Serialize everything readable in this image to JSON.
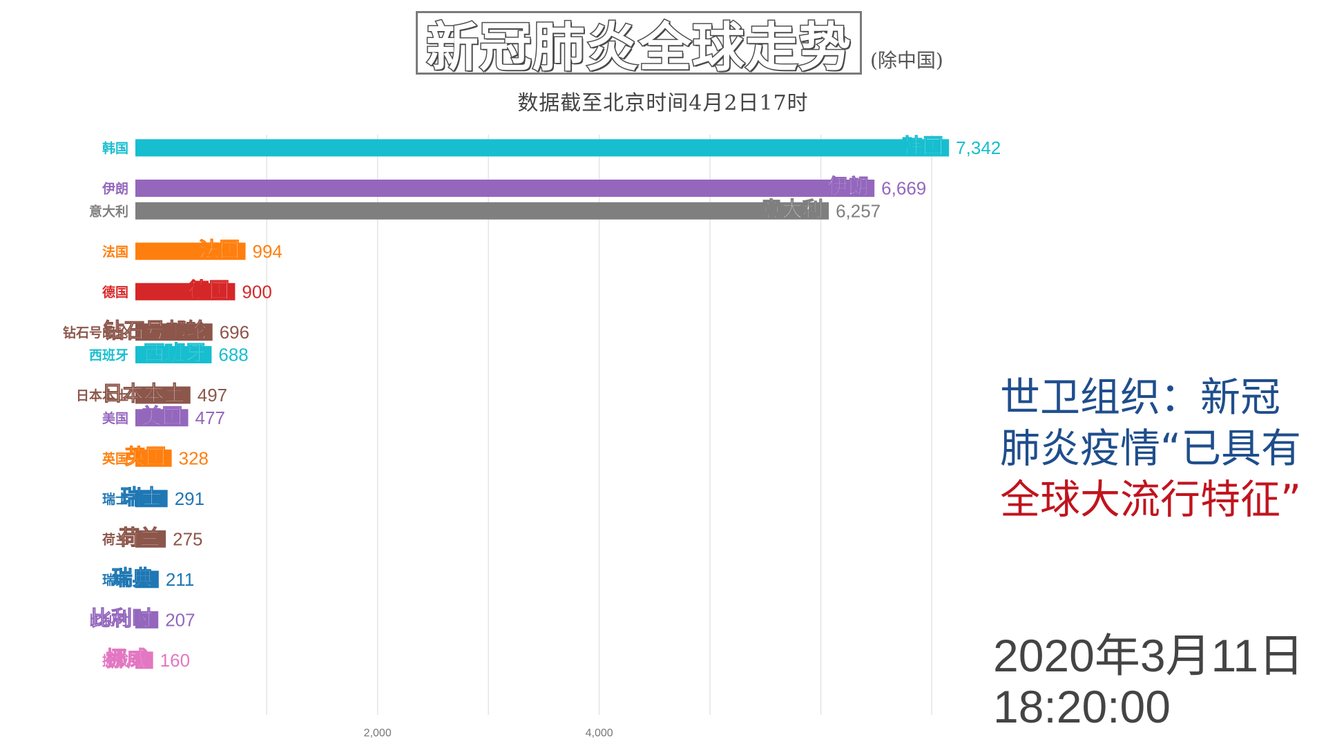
{
  "header": {
    "title": "新冠肺炎全球走势",
    "title_note": "(除中国)",
    "subtitle": "数据截至北京时间4月2日17时"
  },
  "annotation": {
    "lines": [
      {
        "text": "世卫组织：新冠",
        "color": "#1f4e8c"
      },
      {
        "text": "肺炎疫情“已具有",
        "color": "#1f4e8c"
      },
      {
        "text": "全球大流行特征”",
        "color": "#c0141e"
      }
    ]
  },
  "timestamp": {
    "date": "2020年3月11日",
    "time": "18:20:00"
  },
  "chart_data": {
    "type": "bar",
    "orientation": "horizontal",
    "title": "",
    "xlabel": "",
    "ylabel": "",
    "xlim": [
      -500,
      8000
    ],
    "x_ticks": [
      2000,
      4000
    ],
    "x_tick_labels": [
      "2,000",
      "4,000"
    ],
    "value_format": "comma",
    "grid": true,
    "bars": [
      {
        "category": "韩国",
        "value": 7342,
        "color": "#17becf"
      },
      {
        "category": "伊朗",
        "value": 6669,
        "color": "#9467bd"
      },
      {
        "category": "意大利",
        "value": 6257,
        "color": "#7f7f7f"
      },
      {
        "category": "法国",
        "value": 994,
        "color": "#ff7f0e"
      },
      {
        "category": "德国",
        "value": 900,
        "color": "#d62728"
      },
      {
        "category": "钻石号邮轮",
        "value": 696,
        "color": "#8c564b"
      },
      {
        "category": "西班牙",
        "value": 688,
        "color": "#17becf"
      },
      {
        "category": "日本本土",
        "value": 497,
        "color": "#8c564b"
      },
      {
        "category": "美国",
        "value": 477,
        "color": "#9467bd"
      },
      {
        "category": "英国",
        "value": 328,
        "color": "#ff7f0e"
      },
      {
        "category": "瑞士",
        "value": 291,
        "color": "#1f77b4"
      },
      {
        "category": "荷兰",
        "value": 275,
        "color": "#8c564b"
      },
      {
        "category": "瑞典",
        "value": 211,
        "color": "#1f77b4"
      },
      {
        "category": "比利时",
        "value": 207,
        "color": "#9467bd"
      },
      {
        "category": "挪威",
        "value": 160,
        "color": "#e377c2"
      }
    ]
  }
}
